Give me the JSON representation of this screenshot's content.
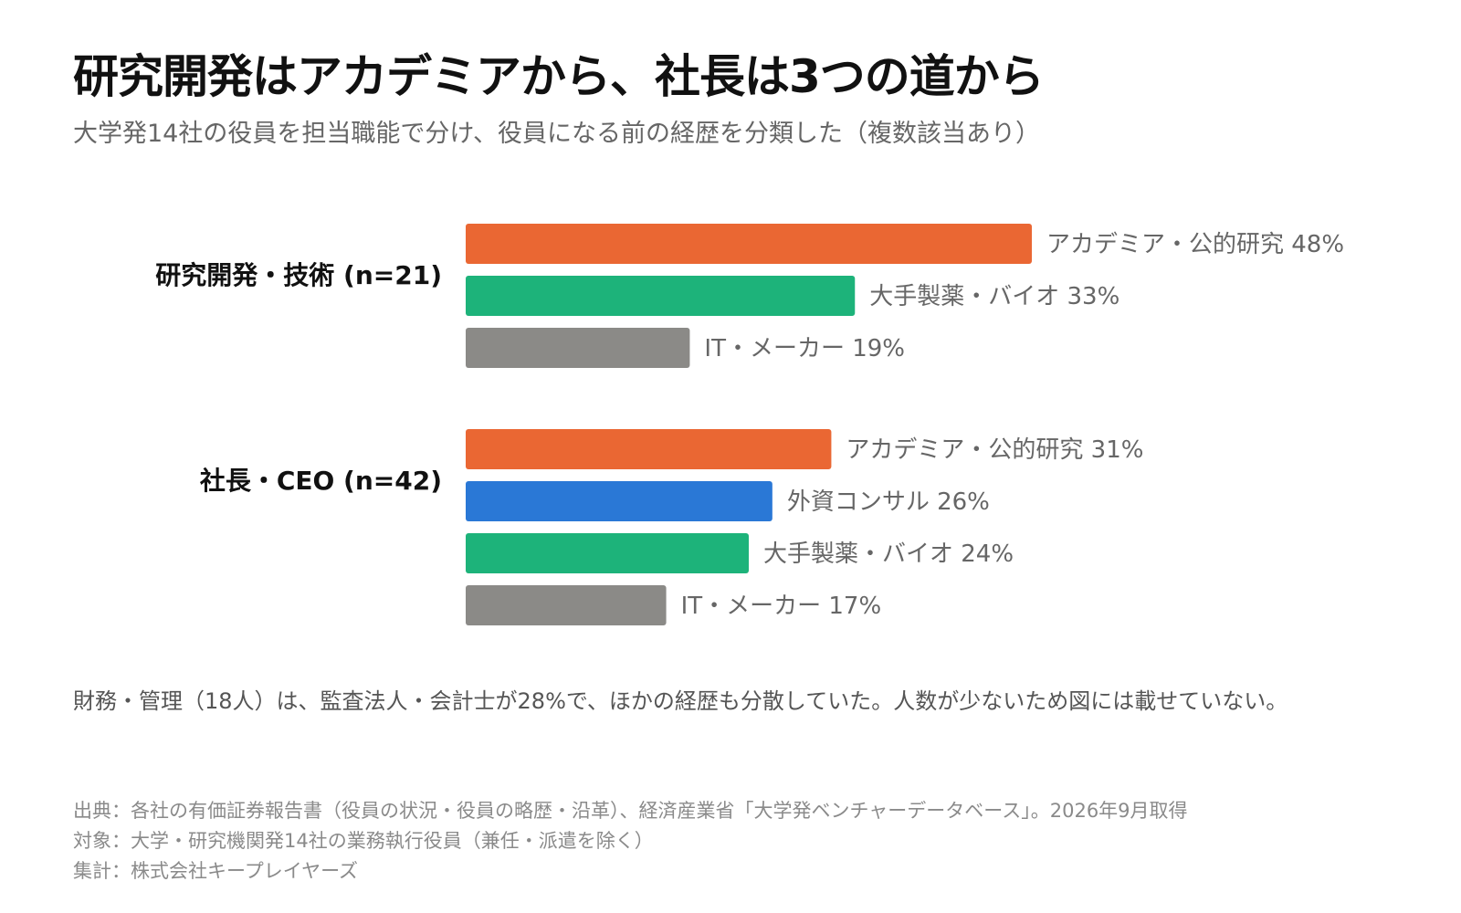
{
  "header": {
    "title": "研究開発はアカデミアから、社長は3つの道から",
    "subtitle": "大学発14社の役員を担当職能で分け、役員になる前の経歴を分類した（複数該当あり）"
  },
  "colors": {
    "academia": "#EA6733",
    "pharma": "#1DB37A",
    "it": "#8B8A87",
    "consulting": "#2A78D6"
  },
  "chart_data": {
    "type": "bar",
    "orientation": "horizontal",
    "value_unit": "%",
    "xlim": [
      0,
      48
    ],
    "grid": false,
    "groups": [
      {
        "label": "研究開発・技術 (n=21)",
        "bars": [
          {
            "category": "アカデミア・公的研究",
            "value": 48,
            "label": "アカデミア・公的研究 48%",
            "color_key": "academia"
          },
          {
            "category": "大手製薬・バイオ",
            "value": 33,
            "label": "大手製薬・バイオ 33%",
            "color_key": "pharma"
          },
          {
            "category": "IT・メーカー",
            "value": 19,
            "label": "IT・メーカー 19%",
            "color_key": "it"
          }
        ]
      },
      {
        "label": "社長・CEO (n=42)",
        "bars": [
          {
            "category": "アカデミア・公的研究",
            "value": 31,
            "label": "アカデミア・公的研究 31%",
            "color_key": "academia"
          },
          {
            "category": "外資コンサル",
            "value": 26,
            "label": "外資コンサル 26%",
            "color_key": "consulting"
          },
          {
            "category": "大手製薬・バイオ",
            "value": 24,
            "label": "大手製薬・バイオ 24%",
            "color_key": "pharma"
          },
          {
            "category": "IT・メーカー",
            "value": 17,
            "label": "IT・メーカー 17%",
            "color_key": "it"
          }
        ]
      }
    ]
  },
  "note": "財務・管理（18人）は、監査法人・会計士が28%で、ほかの経歴も分散していた。人数が少ないため図には載せていない。",
  "footer": {
    "source": "出典：各社の有価証券報告書（役員の状況・役員の略歴・沿革）、経済産業省「大学発ベンチャーデータベース」。2026年9月取得",
    "target": "対象：大学・研究機関発14社の業務執行役員（兼任・派遣を除く）",
    "tally": "集計：株式会社キープレイヤーズ"
  }
}
